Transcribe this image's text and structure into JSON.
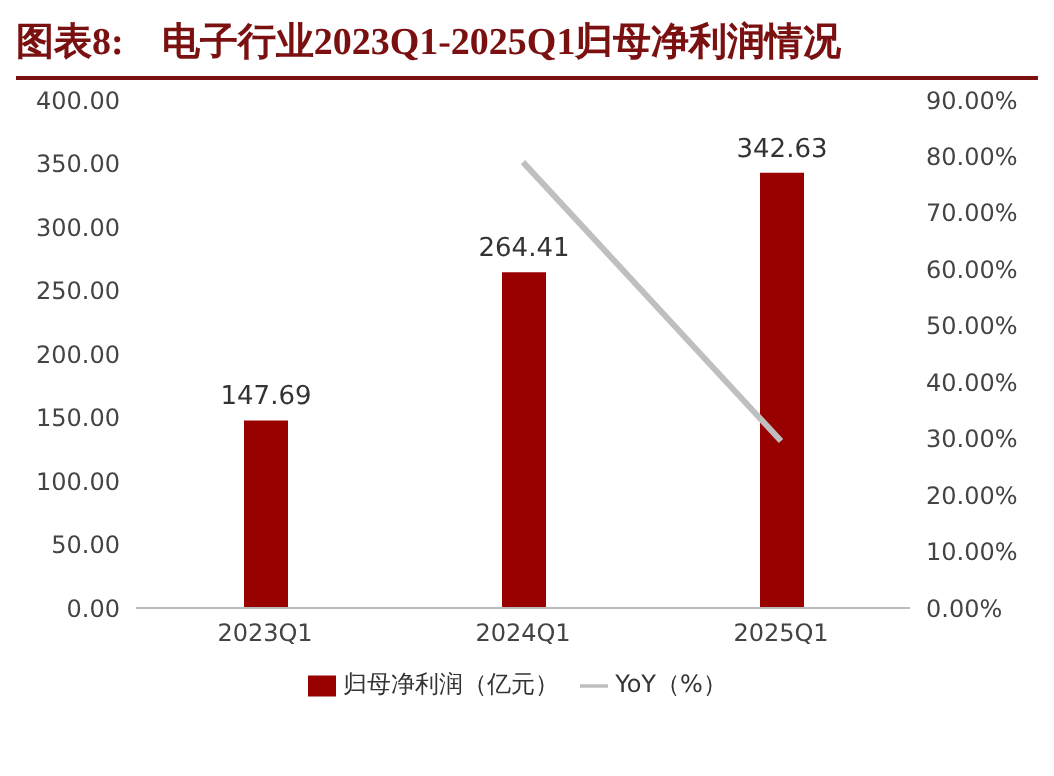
{
  "chart_data": {
    "type": "bar",
    "title": "图表8:    电子行业2023Q1-2025Q1归母净利润情况",
    "categories": [
      "2023Q1",
      "2024Q1",
      "2025Q1"
    ],
    "series": [
      {
        "name": "归母净利润（亿元）",
        "color": "#990000",
        "values": [
          147.69,
          264.41,
          342.63
        ],
        "value_labels": [
          "147.69",
          "264.41",
          "342.63"
        ]
      },
      {
        "name": "YoY（%）",
        "type": "line",
        "axis": "y2",
        "color": "#bfbfbf",
        "values": [
          null,
          79.0,
          29.6
        ]
      }
    ],
    "ylim": [
      0,
      400
    ],
    "yticks": [
      {
        "value": 0,
        "label": "0.00"
      },
      {
        "value": 50,
        "label": "50.00"
      },
      {
        "value": 100,
        "label": "100.00"
      },
      {
        "value": 150,
        "label": "150.00"
      },
      {
        "value": 200,
        "label": "200.00"
      },
      {
        "value": 250,
        "label": "250.00"
      },
      {
        "value": 300,
        "label": "300.00"
      },
      {
        "value": 350,
        "label": "350.00"
      },
      {
        "value": 400,
        "label": "400.00"
      }
    ],
    "y2lim": [
      0,
      90
    ],
    "y2ticks": [
      {
        "value": 0,
        "label": "0.00%"
      },
      {
        "value": 10,
        "label": "10.00%"
      },
      {
        "value": 20,
        "label": "20.00%"
      },
      {
        "value": 30,
        "label": "30.00%"
      },
      {
        "value": 40,
        "label": "40.00%"
      },
      {
        "value": 50,
        "label": "50.00%"
      },
      {
        "value": 60,
        "label": "60.00%"
      },
      {
        "value": 70,
        "label": "70.00%"
      },
      {
        "value": 80,
        "label": "80.00%"
      },
      {
        "value": 90,
        "label": "90.00%"
      }
    ],
    "legend": "bottom",
    "grid": false,
    "marker": "none"
  }
}
